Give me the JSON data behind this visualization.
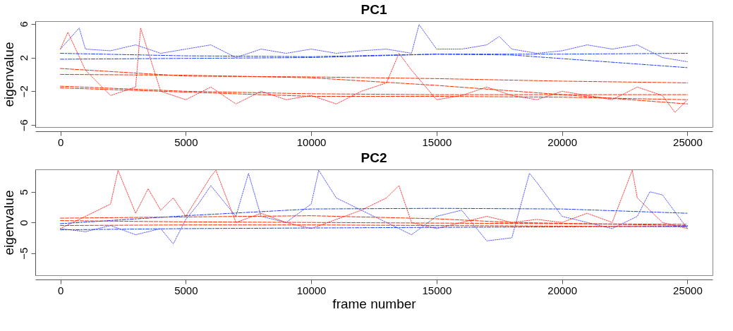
{
  "chart_data": [
    {
      "type": "line",
      "title": "PC1",
      "ylabel": "eigenvalue",
      "xlim": [
        -1000,
        26000
      ],
      "xticks": [
        0,
        5000,
        10000,
        15000,
        20000,
        25000
      ],
      "ylim": [
        -6.24,
        6.31
      ],
      "yticks": [
        -6,
        -2,
        2,
        6
      ],
      "grid": false,
      "series": [
        {
          "color": "#5a5aff",
          "line_style": "dotted",
          "x": [
            0,
            750,
            1000,
            2000,
            3000,
            4000,
            5000,
            6000,
            7000,
            8000,
            9000,
            10000,
            11000,
            12000,
            13000,
            14000,
            14300,
            15000,
            16000,
            17000,
            17500,
            18000,
            19000,
            20000,
            21000,
            22000,
            23000,
            24000,
            25000
          ],
          "values": [
            3.0,
            5.5,
            3.0,
            2.8,
            3.5,
            2.5,
            3.0,
            3.5,
            2.0,
            3.0,
            2.5,
            3.0,
            2.5,
            2.8,
            3.0,
            2.5,
            5.9,
            3.0,
            3.0,
            3.5,
            4.5,
            3.0,
            2.5,
            2.8,
            3.5,
            3.0,
            3.5,
            2.0,
            1.5
          ]
        },
        {
          "color": "#ff4040",
          "line_style": "dotted",
          "x": [
            0,
            300,
            1000,
            2000,
            3000,
            3200,
            4000,
            5000,
            6000,
            7000,
            8000,
            9000,
            10000,
            11000,
            12000,
            13000,
            13500,
            14000,
            15000,
            16000,
            17000,
            18000,
            19000,
            20000,
            21000,
            22000,
            23000,
            24000,
            24500,
            25000
          ],
          "values": [
            3.0,
            5.0,
            0.5,
            -2.5,
            -1.5,
            5.5,
            -2.0,
            -3.0,
            -1.5,
            -3.5,
            -2.0,
            -3.0,
            -2.5,
            -3.5,
            -2.0,
            -1.0,
            2.5,
            0.5,
            -3.0,
            -2.5,
            -1.5,
            -2.5,
            -3.0,
            -2.0,
            -2.5,
            -3.0,
            -1.5,
            -2.5,
            -4.5,
            -3.0
          ]
        },
        {
          "color": "#1a3cff",
          "line_style": "dashdot",
          "x": [
            0,
            5000,
            10000,
            15000,
            20000,
            25000
          ],
          "values": [
            2.5,
            2.2,
            2.1,
            2.4,
            2.4,
            2.5
          ]
        },
        {
          "color": "#1a3cff",
          "line_style": "dashdot",
          "x": [
            0,
            5000,
            10000,
            15000,
            18000,
            25000
          ],
          "values": [
            1.8,
            1.9,
            2.0,
            2.4,
            2.3,
            0.8
          ]
        },
        {
          "color": "#ff2a00",
          "line_style": "dashed",
          "x": [
            0,
            5000,
            10000,
            15000,
            20000,
            25000
          ],
          "values": [
            0.7,
            -0.2,
            -0.3,
            -0.5,
            -0.8,
            -1.0
          ]
        },
        {
          "color": "#ff2a00",
          "line_style": "dashed",
          "x": [
            0,
            5000,
            10000,
            15000,
            20000,
            25000
          ],
          "values": [
            0.0,
            -0.1,
            -0.4,
            -1.3,
            -2.4,
            -3.5
          ]
        },
        {
          "color": "#ff2a00",
          "line_style": "dashed",
          "x": [
            0,
            5000,
            10000,
            15000,
            20000,
            25000
          ],
          "values": [
            -1.4,
            -2.0,
            -2.3,
            -2.4,
            -2.4,
            -2.4
          ]
        },
        {
          "color": "#ff2a00",
          "line_style": "dashed",
          "x": [
            0,
            5000,
            10000,
            15000,
            20000,
            25000
          ],
          "values": [
            -1.6,
            -2.1,
            -2.6,
            -2.6,
            -2.7,
            -3.0
          ]
        }
      ]
    },
    {
      "type": "line",
      "title": "PC2",
      "xlabel": "frame number",
      "ylabel": "eigenvalue",
      "xlim": [
        -1000,
        26000
      ],
      "xticks": [
        0,
        5000,
        10000,
        15000,
        20000,
        25000
      ],
      "ylim": [
        -8.6,
        8.65
      ],
      "yticks": [
        -5,
        0,
        5
      ],
      "grid": false,
      "series": [
        {
          "color": "#5a5aff",
          "line_style": "dotted",
          "x": [
            0,
            1000,
            2000,
            3000,
            4000,
            4500,
            5000,
            5500,
            6000,
            7000,
            7500,
            8000,
            9000,
            10000,
            10300,
            11000,
            12000,
            13000,
            14000,
            15000,
            16000,
            17000,
            18000,
            18700,
            19000,
            20000,
            21000,
            22000,
            23000,
            23500,
            24000,
            25000
          ],
          "values": [
            -1.0,
            -1.5,
            -0.5,
            -2.0,
            -1.0,
            -3.5,
            0.5,
            3.0,
            6.0,
            1.0,
            8.0,
            1.0,
            0.0,
            3.0,
            8.5,
            4.0,
            2.0,
            0.0,
            -2.0,
            1.0,
            2.0,
            -3.0,
            -2.5,
            8.0,
            6.5,
            1.0,
            0.0,
            -1.0,
            1.0,
            5.0,
            4.5,
            -1.0
          ]
        },
        {
          "color": "#ff4040",
          "line_style": "dotted",
          "x": [
            0,
            1000,
            2000,
            2300,
            3000,
            3500,
            4000,
            4500,
            5000,
            6000,
            6200,
            7000,
            8000,
            9000,
            10000,
            11000,
            12000,
            13000,
            13500,
            14000,
            15000,
            16000,
            17000,
            18000,
            19000,
            20000,
            21000,
            22000,
            22800,
            23000,
            24000,
            25000
          ],
          "values": [
            -1.0,
            1.0,
            3.0,
            8.5,
            1.5,
            5.5,
            2.0,
            4.0,
            1.0,
            7.5,
            8.5,
            0.0,
            1.5,
            0.0,
            -1.0,
            0.5,
            2.0,
            4.0,
            6.0,
            0.0,
            -1.0,
            0.0,
            1.0,
            0.0,
            0.5,
            0.0,
            1.5,
            0.0,
            8.5,
            4.0,
            0.0,
            -1.0
          ]
        },
        {
          "color": "#1a3cff",
          "line_style": "dashdot",
          "x": [
            0,
            5000,
            10000,
            15000,
            20000,
            25000
          ],
          "values": [
            -0.2,
            1.1,
            2.2,
            2.3,
            2.2,
            1.5
          ]
        },
        {
          "color": "#1a3cff",
          "line_style": "dashdot",
          "x": [
            0,
            5000,
            10000,
            15000,
            20000,
            25000
          ],
          "values": [
            -1.2,
            -1.0,
            -0.9,
            -0.8,
            -0.7,
            -0.6
          ]
        },
        {
          "color": "#ff2a00",
          "line_style": "dashed",
          "x": [
            0,
            5000,
            10000,
            15000,
            18000,
            25000
          ],
          "values": [
            0.7,
            0.9,
            1.1,
            0.6,
            0.0,
            -0.5
          ]
        },
        {
          "color": "#ff2a00",
          "line_style": "dashed",
          "x": [
            0,
            5000,
            10000,
            15000,
            20000,
            25000
          ],
          "values": [
            0.3,
            0.1,
            0.0,
            -0.1,
            -0.2,
            -0.3
          ]
        },
        {
          "color": "#ff2a00",
          "line_style": "dashed",
          "x": [
            0,
            5000,
            10000,
            15000,
            20000,
            25000
          ],
          "values": [
            -0.5,
            -0.4,
            -0.4,
            -0.5,
            -0.6,
            -0.7
          ]
        }
      ]
    }
  ]
}
